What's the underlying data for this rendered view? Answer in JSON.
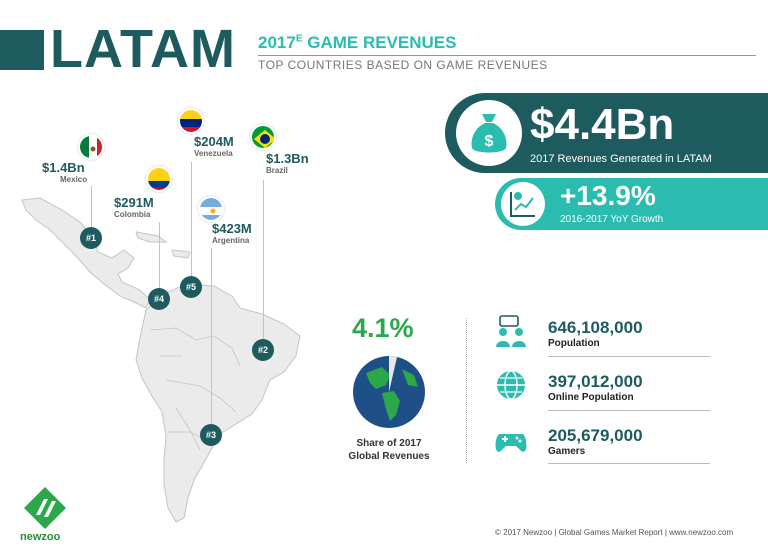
{
  "header": {
    "title": "LATAM",
    "subtitle_year": "2017",
    "subtitle_sup": "E",
    "subtitle_rest": " GAME REVENUES",
    "subtitle2": "TOP COUNTRIES BASED ON GAME REVENUES"
  },
  "revenue": {
    "value": "$4.4Bn",
    "label": "2017 Revenues Generated in LATAM",
    "icon": "money-bag-icon"
  },
  "growth": {
    "value": "+13.9%",
    "label": "2016-2017 YoY Growth",
    "icon": "growth-chart-icon"
  },
  "countries": [
    {
      "rank": "#1",
      "value": "$1.4Bn",
      "name": "Mexico"
    },
    {
      "rank": "#2",
      "value": "$1.3Bn",
      "name": "Brazil"
    },
    {
      "rank": "#3",
      "value": "$423M",
      "name": "Argentina"
    },
    {
      "rank": "#4",
      "value": "$291M",
      "name": "Colombia"
    },
    {
      "rank": "#5",
      "value": "$204M",
      "name": "Venezuela"
    }
  ],
  "share": {
    "value": "4.1%",
    "label_line1": "Share of 2017",
    "label_line2": "Global Revenues"
  },
  "stats": [
    {
      "value": "646,108,000",
      "label": "Population",
      "icon": "people-icon"
    },
    {
      "value": "397,012,000",
      "label": "Online Population",
      "icon": "globe-icon"
    },
    {
      "value": "205,679,000",
      "label": "Gamers",
      "icon": "gamepad-icon"
    }
  ],
  "footer": {
    "logo_text": "newzoo",
    "copyright": "© 2017 Newzoo | Global Games Market Report | www.newzoo.com"
  },
  "colors": {
    "dark_teal": "#1e5b5e",
    "teal": "#2bbcb0",
    "green": "#2aa84a"
  }
}
